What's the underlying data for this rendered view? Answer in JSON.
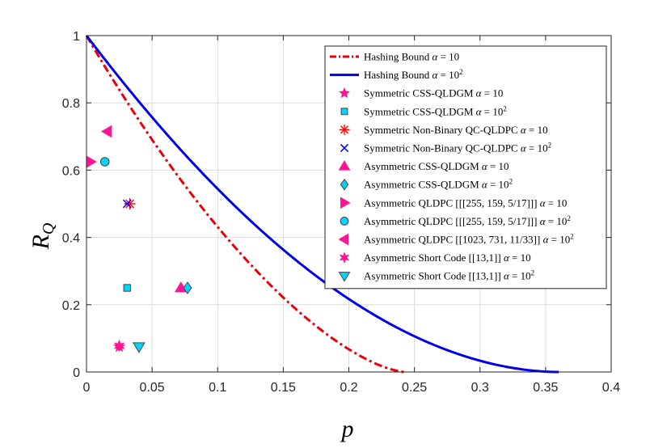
{
  "chart_data": {
    "type": "scatter",
    "title": "",
    "xlabel": "p",
    "ylabel": "R",
    "ylabel_subscript": "Q",
    "xlim": [
      0,
      0.4
    ],
    "ylim": [
      0,
      1
    ],
    "x_ticks": [
      0,
      0.05,
      0.1,
      0.15,
      0.2,
      0.25,
      0.3,
      0.35,
      0.4
    ],
    "x_tick_labels": [
      "0",
      "0.05",
      "0.1",
      "0.15",
      "0.2",
      "0.25",
      "0.3",
      "0.35",
      "0.4"
    ],
    "y_ticks": [
      0,
      0.2,
      0.4,
      0.6,
      0.8,
      1
    ],
    "y_tick_labels": [
      "0",
      "0.2",
      "0.4",
      "0.6",
      "0.8",
      "1"
    ],
    "grid": true,
    "legend_position": "top-right",
    "series": [
      {
        "name": "Hashing Bound",
        "alpha": "10",
        "type": "curve",
        "marker": "dashdot",
        "color": "#e8000b",
        "entropy_curve": true,
        "x_max": 0.243
      },
      {
        "name": "Hashing Bound",
        "alpha": "10",
        "sup": "2",
        "type": "curve",
        "marker": "solid",
        "color": "#0000e6",
        "entropy_curve": false,
        "x_max": 0.36
      },
      {
        "name": "Symmetric CSS-QLDGM",
        "alpha": "10",
        "type": "scatter",
        "marker": "star5",
        "color": "#ff1493",
        "points": [
          [
            0.025,
            0.075
          ]
        ]
      },
      {
        "name": "Symmetric CSS-QLDGM",
        "alpha": "10",
        "sup": "2",
        "type": "scatter",
        "marker": "square",
        "color": "#00d5ff",
        "points": [
          [
            0.031,
            0.25
          ]
        ]
      },
      {
        "name": "Symmetric Non-Binary QC-QLDPC",
        "alpha": "10",
        "type": "scatter",
        "marker": "asterisk",
        "color": "#ff0000",
        "points": [
          [
            0.033,
            0.5
          ]
        ]
      },
      {
        "name": "Symmetric Non-Binary QC-QLDPC",
        "alpha": "10",
        "sup": "2",
        "type": "scatter",
        "marker": "x",
        "color": "#0000ff",
        "points": [
          [
            0.031,
            0.5
          ]
        ]
      },
      {
        "name": "Asymmetric CSS-QLDGM",
        "alpha": "10",
        "type": "scatter",
        "marker": "triangle-up",
        "color": "#ff1493",
        "points": [
          [
            0.072,
            0.25
          ]
        ]
      },
      {
        "name": "Asymmetric CSS-QLDGM",
        "alpha": "10",
        "sup": "2",
        "type": "scatter",
        "marker": "diamond",
        "color": "#00d5ff",
        "points": [
          [
            0.077,
            0.25
          ]
        ]
      },
      {
        "name": "Asymmetric QLDPC [[[255, 159, 5/17]]]",
        "alpha": "10",
        "type": "scatter",
        "marker": "triangle-right",
        "color": "#ff1493",
        "points": [
          [
            0.003,
            0.625
          ]
        ]
      },
      {
        "name": "Asymmetric QLDPC [[[255, 159, 5/17]]]",
        "alpha": "10",
        "sup": "2",
        "type": "scatter",
        "marker": "circle",
        "color": "#00d5ff",
        "points": [
          [
            0.014,
            0.625
          ]
        ]
      },
      {
        "name": "Asymmetric QLDPC [[1023, 731, 11/33]]",
        "alpha": "10",
        "sup": "2",
        "type": "scatter",
        "marker": "triangle-left",
        "color": "#ff1493",
        "points": [
          [
            0.016,
            0.715
          ]
        ]
      },
      {
        "name": "Asymmetric Short Code [[13,1]]",
        "alpha": "10",
        "type": "scatter",
        "marker": "star6",
        "color": "#ff1493",
        "points": [
          [
            0.025,
            0.078
          ]
        ]
      },
      {
        "name": "Asymmetric Short Code [[13,1]]",
        "alpha": "10",
        "sup": "2",
        "type": "scatter",
        "marker": "triangle-down",
        "color": "#00d5ff",
        "points": [
          [
            0.04,
            0.075
          ]
        ]
      }
    ]
  }
}
